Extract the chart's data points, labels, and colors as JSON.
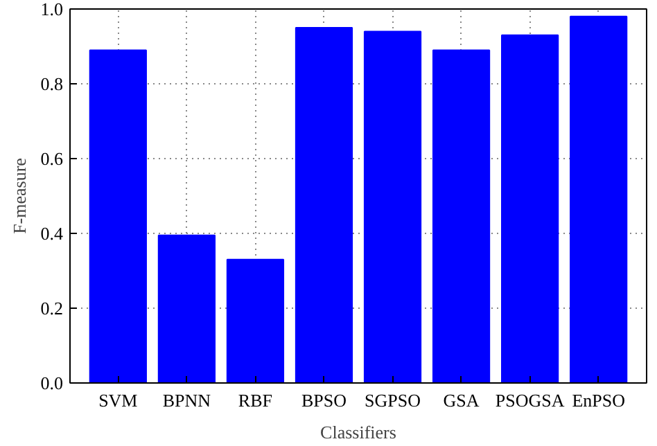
{
  "chart_data": {
    "type": "bar",
    "xlabel": "Classifiers",
    "ylabel": "F-measure",
    "categories": [
      "SVM",
      "BPNN",
      "RBF",
      "BPSO",
      "SGPSO",
      "GSA",
      "PSOGSA",
      "EnPSO"
    ],
    "values": [
      0.89,
      0.395,
      0.33,
      0.95,
      0.94,
      0.89,
      0.93,
      0.98
    ],
    "color": "#0000ff",
    "ylim": [
      0,
      1
    ],
    "yticks": [
      {
        "value": 0,
        "label": "0.0"
      },
      0.2,
      0.4,
      0.6,
      0.8,
      {
        "value": 1,
        "label": "1.0"
      }
    ],
    "grid": true
  }
}
